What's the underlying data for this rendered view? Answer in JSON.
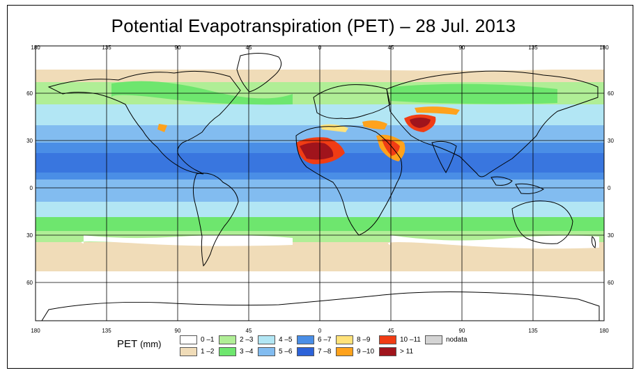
{
  "title": "Potential Evapotranspiration (PET) – 28 Jul. 2013",
  "legend": {
    "title": "PET",
    "unit": "(mm)",
    "items": [
      {
        "label": "0 –1",
        "color": "#ffffff"
      },
      {
        "label": "1 –2",
        "color": "#f0dcb8"
      },
      {
        "label": "2 –3",
        "color": "#b0ee96"
      },
      {
        "label": "3 –4",
        "color": "#6ee66e"
      },
      {
        "label": "4 –5",
        "color": "#b2e6f4"
      },
      {
        "label": "5 –6",
        "color": "#82bcf0"
      },
      {
        "label": "6 –7",
        "color": "#4a8ee6"
      },
      {
        "label": "7 –8",
        "color": "#2c62d8"
      },
      {
        "label": "8 –9",
        "color": "#ffe27a"
      },
      {
        "label": "9 –10",
        "color": "#ffa21c"
      },
      {
        "label": "10 –11",
        "color": "#f03c14"
      },
      {
        "label": "> 11",
        "color": "#a0141c"
      },
      {
        "label": "nodata",
        "color": "#d4d4d4"
      }
    ]
  },
  "axes": {
    "longitude_ticks": [
      "180",
      "135",
      "90",
      "45",
      "0",
      "45",
      "90",
      "135",
      "180"
    ],
    "latitude_ticks": [
      "60",
      "30",
      "0",
      "30",
      "60"
    ]
  },
  "colors": {
    "frame": "#000000",
    "grid": "#000000",
    "coast": "#000000"
  }
}
